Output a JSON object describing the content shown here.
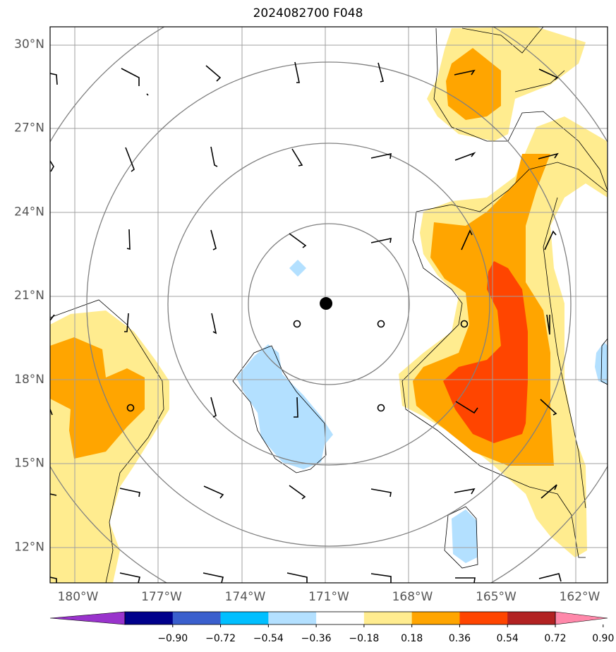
{
  "title": "2024082700 F048",
  "map": {
    "lon_range": [
      -181,
      -161
    ],
    "lat_range": [
      10.7,
      30.6
    ],
    "lat_ticks": [
      {
        "value": 12,
        "label": "12°N"
      },
      {
        "value": 15,
        "label": "15°N"
      },
      {
        "value": 18,
        "label": "18°N"
      },
      {
        "value": 21,
        "label": "21°N"
      },
      {
        "value": 24,
        "label": "24°N"
      },
      {
        "value": 27,
        "label": "27°N"
      },
      {
        "value": 30,
        "label": "30°N"
      }
    ],
    "lon_ticks": [
      {
        "value": -180,
        "label": "180°W"
      },
      {
        "value": -177,
        "label": "177°W"
      },
      {
        "value": -174,
        "label": "174°W"
      },
      {
        "value": -171,
        "label": "171°W"
      },
      {
        "value": -168,
        "label": "168°W"
      },
      {
        "value": -165,
        "label": "165°W"
      },
      {
        "value": -162,
        "label": "162°W"
      }
    ],
    "center_marker": {
      "lon": -171.1,
      "lat": 20.7,
      "color": "#000000"
    },
    "range_rings_deg": [
      2.9,
      5.8,
      8.7,
      11.6
    ],
    "shading_colors": {
      "light_blue": "#b3e0ff",
      "yellow": "#ffec8f",
      "orange": "#ffa500",
      "red_orange": "#ff4500"
    }
  },
  "colorbar": {
    "colors": [
      "#9933cc",
      "#00008b",
      "#3a5fcd",
      "#00bfff",
      "#b3e0ff",
      "#ffffff",
      "#ffec8f",
      "#ffa500",
      "#ff4500",
      "#b22222",
      "#ff88aa"
    ],
    "tick_labels": [
      "−0.90",
      "−0.72",
      "−0.54",
      "−0.36",
      "−0.18",
      "0.18",
      "0.36",
      "0.54",
      "0.72",
      "0.90"
    ]
  }
}
